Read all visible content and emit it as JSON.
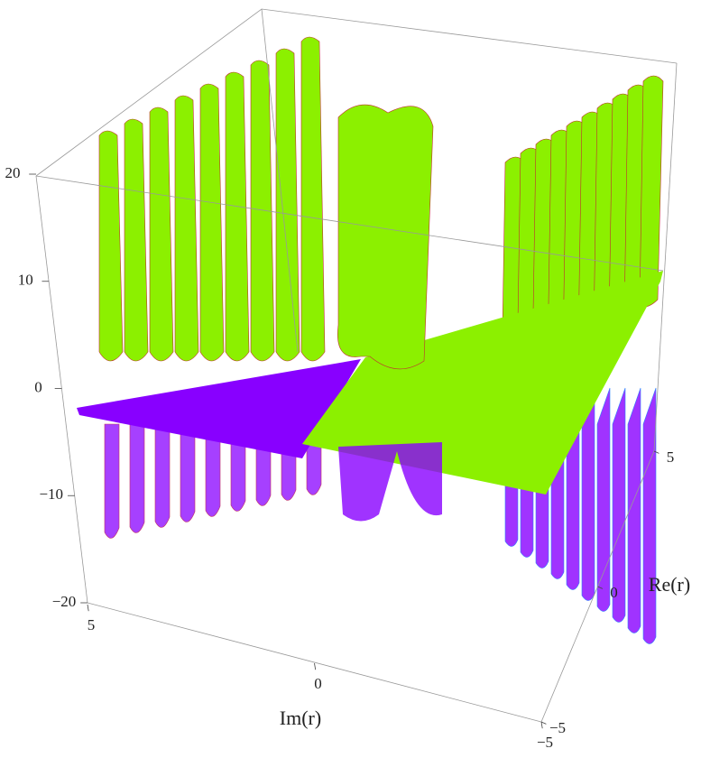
{
  "chart_data": {
    "type": "surface3d",
    "xlabel": "Im(r)",
    "ylabel": "Re(r)",
    "xlim": [
      5,
      -5
    ],
    "xticks": [
      5,
      0,
      {
        "value": -5,
        "label": "−5"
      }
    ],
    "ylim": [
      -5,
      5
    ],
    "yticks": [
      {
        "value": -5,
        "label": "−5"
      },
      0,
      5
    ],
    "zlim": [
      -20,
      20
    ],
    "zticks": [
      {
        "value": -20,
        "label": "−20"
      },
      {
        "value": -10,
        "label": "−10"
      },
      0,
      10,
      20
    ],
    "colors": [
      "#8cf000",
      "#8800ff"
    ]
  }
}
